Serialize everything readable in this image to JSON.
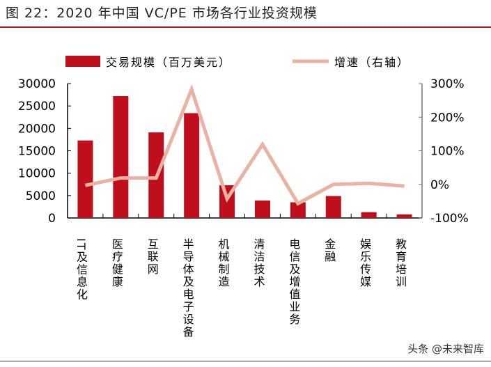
{
  "title": "图 22：2020 年中国 VC/PE 市场各行业投资规模",
  "watermark": "头条 @未来智库",
  "chart_data": {
    "type": "bar+line",
    "categories": [
      "IT及信息化",
      "医疗健康",
      "互联网",
      "半导体及电子设备",
      "机械制造",
      "清洁技术",
      "电信及增值业务",
      "金融",
      "娱乐传媒",
      "教育培训"
    ],
    "series": [
      {
        "name": "交易规模（百万美元）",
        "type": "bar",
        "axis": "left",
        "color": "#c00f1c",
        "values": [
          17300,
          27200,
          19100,
          23400,
          7300,
          3900,
          3500,
          4900,
          1300,
          800
        ]
      },
      {
        "name": "增速（右轴）",
        "type": "line",
        "axis": "right",
        "color": "#eab2a3",
        "values": [
          -3,
          19,
          19,
          283,
          -43,
          119,
          -57,
          0,
          3,
          -5
        ]
      }
    ],
    "left_axis": {
      "ylim": [
        0,
        30000
      ],
      "ticks": [
        "0",
        "5000",
        "10000",
        "15000",
        "20000",
        "25000",
        "30000"
      ]
    },
    "right_axis": {
      "ylim": [
        -100,
        300
      ],
      "ticks": [
        "-100%",
        "0%",
        "100%",
        "200%",
        "300%"
      ]
    },
    "legend": "top",
    "grid": false
  }
}
